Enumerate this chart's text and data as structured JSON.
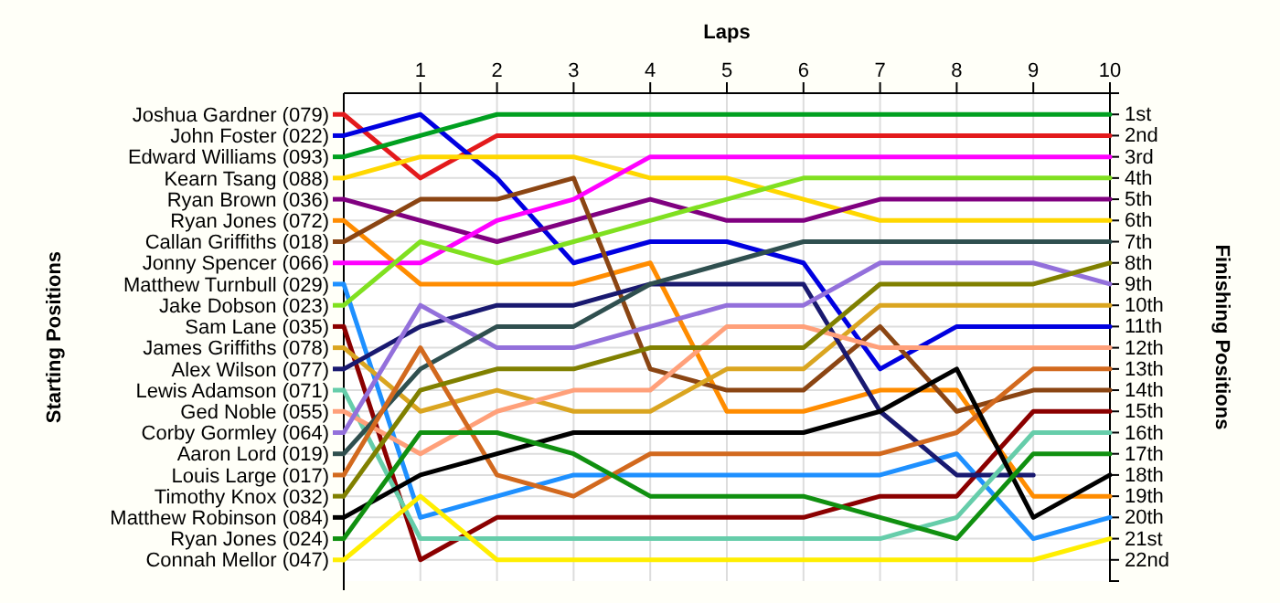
{
  "chart_data": {
    "type": "line",
    "xlabel": "Laps",
    "ylabel": "Finishing Positions",
    "legend_title": "Starting Positions",
    "legend": "left",
    "x": [
      0,
      1,
      2,
      3,
      4,
      5,
      6,
      7,
      8,
      9,
      10
    ],
    "xlim": [
      0,
      10
    ],
    "xticks": [
      1,
      2,
      3,
      4,
      5,
      6,
      7,
      8,
      9,
      10
    ],
    "ylim": [
      23,
      0
    ],
    "yticks": [
      {
        "value": 1,
        "label": "1st"
      },
      {
        "value": 2,
        "label": "2nd"
      },
      {
        "value": 3,
        "label": "3rd"
      },
      {
        "value": 4,
        "label": "4th"
      },
      {
        "value": 5,
        "label": "5th"
      },
      {
        "value": 6,
        "label": "6th"
      },
      {
        "value": 7,
        "label": "7th"
      },
      {
        "value": 8,
        "label": "8th"
      },
      {
        "value": 9,
        "label": "9th"
      },
      {
        "value": 10,
        "label": "10th"
      },
      {
        "value": 11,
        "label": "11th"
      },
      {
        "value": 12,
        "label": "12th"
      },
      {
        "value": 13,
        "label": "13th"
      },
      {
        "value": 14,
        "label": "14th"
      },
      {
        "value": 15,
        "label": "15th"
      },
      {
        "value": 16,
        "label": "16th"
      },
      {
        "value": 17,
        "label": "17th"
      },
      {
        "value": 18,
        "label": "18th"
      },
      {
        "value": 19,
        "label": "19th"
      },
      {
        "value": 20,
        "label": "20th"
      },
      {
        "value": 21,
        "label": "21st"
      },
      {
        "value": 22,
        "label": "22nd"
      }
    ],
    "grid": true,
    "marker": "none",
    "line_style": "solid",
    "series": [
      {
        "name": "Joshua Gardner (079)",
        "color": "#e31a1c",
        "values": [
          1,
          4,
          2,
          2,
          2,
          2,
          2,
          2,
          2,
          2,
          2
        ]
      },
      {
        "name": "John Foster (022)",
        "color": "#0000e0",
        "values": [
          2,
          1,
          4,
          8,
          7,
          7,
          8,
          13,
          11,
          11,
          11
        ]
      },
      {
        "name": "Edward Williams (093)",
        "color": "#00a020",
        "values": [
          3,
          2,
          1,
          1,
          1,
          1,
          1,
          1,
          1,
          1,
          1
        ]
      },
      {
        "name": "Kearn Tsang (088)",
        "color": "#ffd700",
        "values": [
          4,
          3,
          3,
          3,
          4,
          4,
          5,
          6,
          6,
          6,
          6
        ]
      },
      {
        "name": "Ryan Brown (036)",
        "color": "#800080",
        "values": [
          5,
          6,
          7,
          6,
          5,
          6,
          6,
          5,
          5,
          5,
          5
        ]
      },
      {
        "name": "Ryan Jones (072)",
        "color": "#ff8c00",
        "values": [
          6,
          9,
          9,
          9,
          8,
          15,
          15,
          14,
          14,
          19,
          19
        ]
      },
      {
        "name": "Callan Griffiths (018)",
        "color": "#8b4513",
        "values": [
          7,
          5,
          5,
          4,
          13,
          14,
          14,
          11,
          15,
          14,
          14
        ]
      },
      {
        "name": "Jonny Spencer (066)",
        "color": "#ff00ff",
        "values": [
          8,
          8,
          6,
          5,
          3,
          3,
          3,
          3,
          3,
          3,
          3
        ]
      },
      {
        "name": "Matthew Turnbull (029)",
        "color": "#1e90ff",
        "values": [
          9,
          20,
          19,
          18,
          18,
          18,
          18,
          18,
          17,
          21,
          20
        ]
      },
      {
        "name": "Jake Dobson (023)",
        "color": "#80e020",
        "values": [
          10,
          7,
          8,
          7,
          6,
          5,
          4,
          4,
          4,
          4,
          4
        ]
      },
      {
        "name": "Sam Lane (035)",
        "color": "#8b0000",
        "values": [
          11,
          22,
          20,
          20,
          20,
          20,
          20,
          19,
          19,
          15,
          15
        ]
      },
      {
        "name": "James Griffiths (078)",
        "color": "#daa520",
        "values": [
          12,
          15,
          14,
          15,
          15,
          13,
          13,
          10,
          10,
          10,
          10
        ]
      },
      {
        "name": "Alex Wilson (077)",
        "color": "#191970",
        "values": [
          13,
          11,
          10,
          10,
          9,
          9,
          9,
          15,
          18,
          18,
          null
        ]
      },
      {
        "name": "Lewis Adamson (071)",
        "color": "#66cdaa",
        "values": [
          14,
          21,
          21,
          21,
          21,
          21,
          21,
          21,
          20,
          16,
          16
        ]
      },
      {
        "name": "Ged Noble (055)",
        "color": "#ffa07a",
        "values": [
          15,
          17,
          15,
          14,
          14,
          11,
          11,
          12,
          12,
          12,
          12
        ]
      },
      {
        "name": "Corby Gormley (064)",
        "color": "#9370db",
        "values": [
          16,
          10,
          12,
          12,
          11,
          10,
          10,
          8,
          8,
          8,
          9
        ]
      },
      {
        "name": "Aaron Lord (019)",
        "color": "#2f4f4f",
        "values": [
          17,
          13,
          11,
          11,
          9,
          8,
          7,
          7,
          7,
          7,
          7
        ]
      },
      {
        "name": "Louis Large (017)",
        "color": "#d2691e",
        "values": [
          18,
          12,
          18,
          19,
          17,
          17,
          17,
          17,
          16,
          13,
          13
        ]
      },
      {
        "name": "Timothy Knox (032)",
        "color": "#808000",
        "values": [
          19,
          14,
          13,
          13,
          12,
          12,
          12,
          9,
          9,
          9,
          8
        ]
      },
      {
        "name": "Matthew Robinson (084)",
        "color": "#000000",
        "values": [
          20,
          18,
          17,
          16,
          16,
          16,
          16,
          15,
          13,
          20,
          18
        ]
      },
      {
        "name": "Ryan Jones (024)",
        "color": "#109010",
        "values": [
          21,
          16,
          16,
          17,
          19,
          19,
          19,
          20,
          21,
          17,
          17
        ]
      },
      {
        "name": "Connah Mellor (047)",
        "color": "#ffee00",
        "values": [
          22,
          19,
          22,
          22,
          22,
          22,
          22,
          22,
          22,
          22,
          21
        ]
      }
    ]
  }
}
